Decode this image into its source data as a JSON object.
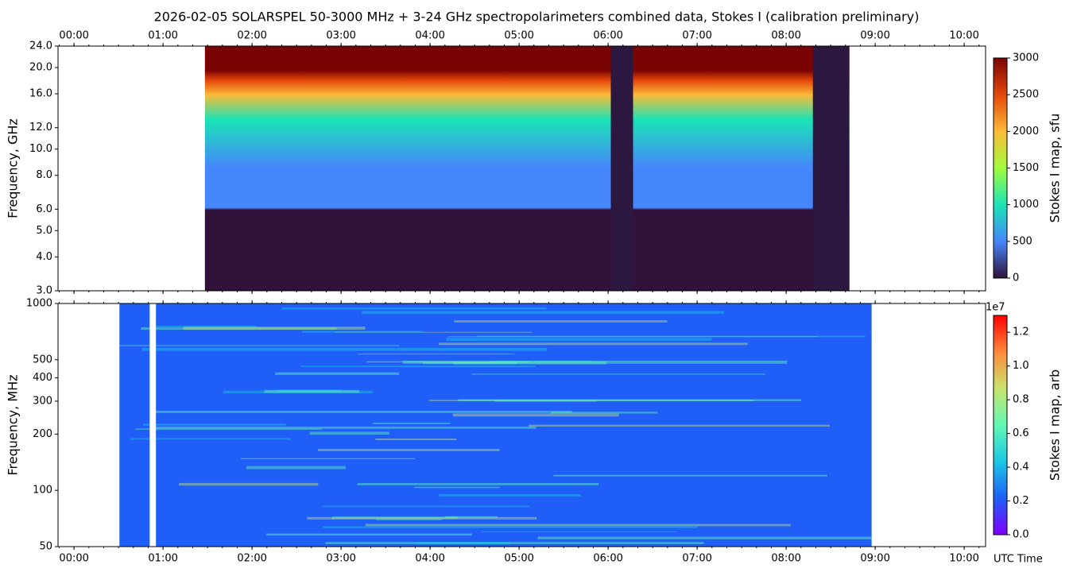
{
  "title": "2026-02-05  SOLARSPEL  50-3000 MHz  +  3-24 GHz  spectropolarimeters combined data,  Stokes I  (calibration preliminary)",
  "chart_data": [
    {
      "type": "heatmap",
      "ylabel": "Frequency, GHz",
      "log_y": true,
      "xtick_position": "top",
      "xlim": [
        -0.18,
        10.24
      ],
      "ylim": [
        3,
        24
      ],
      "xticks": [
        {
          "value": 0,
          "label": "00:00"
        },
        {
          "value": 1,
          "label": "01:00"
        },
        {
          "value": 2,
          "label": "02:00"
        },
        {
          "value": 3,
          "label": "03:00"
        },
        {
          "value": 4,
          "label": "04:00"
        },
        {
          "value": 5,
          "label": "05:00"
        },
        {
          "value": 6,
          "label": "06:00"
        },
        {
          "value": 7,
          "label": "07:00"
        },
        {
          "value": 8,
          "label": "08:00"
        },
        {
          "value": 9,
          "label": "09:00"
        },
        {
          "value": 10,
          "label": "10:00"
        }
      ],
      "yticks": [
        {
          "value": 3,
          "label": "3.0"
        },
        {
          "value": 4,
          "label": "4.0"
        },
        {
          "value": 5,
          "label": "5.0"
        },
        {
          "value": 6,
          "label": "6.0"
        },
        {
          "value": 8,
          "label": "8.0"
        },
        {
          "value": 10,
          "label": "10.0"
        },
        {
          "value": 12,
          "label": "12.0"
        },
        {
          "value": 16,
          "label": "16.0"
        },
        {
          "value": 20,
          "label": "20.0"
        },
        {
          "value": 24,
          "label": "24.0"
        }
      ],
      "time_range": [
        1.47,
        8.71
      ],
      "low_signal": [
        [
          6.03,
          6.28
        ],
        [
          8.3,
          8.71
        ]
      ],
      "gaps": [],
      "colorbar": {
        "label": "Stokes I map, sfu",
        "lim": [
          0,
          3000
        ],
        "ticks": [
          0,
          500,
          1000,
          1500,
          2000,
          2500,
          3000
        ],
        "colormap": [
          "#30123b",
          "#4686fb",
          "#1ae4b6",
          "#a2fc3c",
          "#fabb39",
          "#e4460a",
          "#7a0403"
        ]
      }
    },
    {
      "type": "heatmap",
      "ylabel": "Frequency, MHz",
      "xlabel": "UTC Time",
      "log_y": true,
      "xtick_position": "bottom",
      "xlim": [
        -0.18,
        10.24
      ],
      "ylim": [
        50,
        1000
      ],
      "xticks": [
        {
          "value": 0,
          "label": "00:00"
        },
        {
          "value": 1,
          "label": "01:00"
        },
        {
          "value": 2,
          "label": "02:00"
        },
        {
          "value": 3,
          "label": "03:00"
        },
        {
          "value": 4,
          "label": "04:00"
        },
        {
          "value": 5,
          "label": "05:00"
        },
        {
          "value": 6,
          "label": "06:00"
        },
        {
          "value": 7,
          "label": "07:00"
        },
        {
          "value": 8,
          "label": "08:00"
        },
        {
          "value": 9,
          "label": "09:00"
        },
        {
          "value": 10,
          "label": "10:00"
        }
      ],
      "yticks": [
        50,
        100,
        200,
        300,
        400,
        500,
        1000
      ],
      "time_range": [
        0.51,
        8.96
      ],
      "low_signal": [],
      "gaps": [
        [
          0.85,
          0.92
        ]
      ],
      "colorbar": {
        "label": "Stokes I map, arb",
        "offset_label": "1e7",
        "lim": [
          0,
          1.3
        ],
        "ticks": [
          {
            "value": 0,
            "label": "0.0"
          },
          {
            "value": 0.2,
            "label": "0.2"
          },
          {
            "value": 0.4,
            "label": "0.4"
          },
          {
            "value": 0.6,
            "label": "0.6"
          },
          {
            "value": 0.8,
            "label": "0.8"
          },
          {
            "value": 1,
            "label": "1.0"
          },
          {
            "value": 1.2,
            "label": "1.2"
          }
        ],
        "colormap": [
          "#8000ff",
          "#1f5ff7",
          "#1ac7e6",
          "#62f8b4",
          "#c8e36e",
          "#ff8a3c",
          "#ff0000"
        ]
      }
    }
  ]
}
